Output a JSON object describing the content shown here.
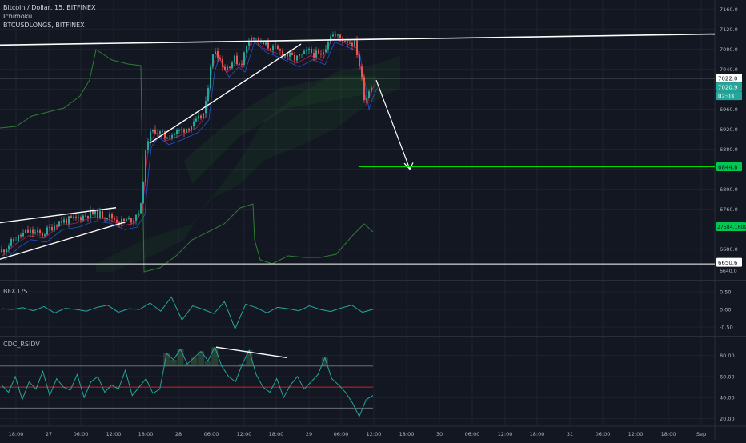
{
  "legend": {
    "title": "Bitcoin / Dollar, 15, BITFINEX",
    "indicator": "Ichimoku",
    "overlay": "BTCUSDLONGS, BITFINEX"
  },
  "pane_labels": {
    "ls": "BFX L/S",
    "rsi": "CDC_RSIDV"
  },
  "price_tags": {
    "t1": "7022.0",
    "t2": "7020.9",
    "t3": "02:03",
    "target": "6844.8",
    "longs": "27584.1609",
    "support": "6650.6",
    "support2": "6640.0"
  },
  "colors": {
    "background": "#131722",
    "grid": "#1f2331",
    "up": "#26a69a",
    "down": "#ef5350",
    "ichimoku_green": "#4caf50",
    "target_line": "#00e000",
    "osc": "#26a69a",
    "white_lines": "#ffffff"
  },
  "chart_data": [
    {
      "type": "candlestick",
      "title": "Bitcoin / Dollar, 15, BITFINEX",
      "ylim": [
        6630,
        7170
      ],
      "y_ticks": [
        7160,
        7120,
        7080,
        7040,
        7000,
        6960,
        6920,
        6880,
        6840,
        6800,
        6760,
        6720,
        6680
      ],
      "x_ticks": [
        "18:00",
        "27",
        "06:00",
        "12:00",
        "18:00",
        "28",
        "06:00",
        "12:00",
        "18:00",
        "29",
        "06:00",
        "12:00",
        "18:00",
        "30",
        "06:00",
        "12:00",
        "18:00",
        "31",
        "06:00",
        "12:00",
        "18:00",
        "Sep"
      ],
      "path_points": [
        [
          0,
          6675
        ],
        [
          18,
          6700
        ],
        [
          33,
          6715
        ],
        [
          52,
          6710
        ],
        [
          72,
          6735
        ],
        [
          92,
          6740
        ],
        [
          112,
          6752
        ],
        [
          132,
          6748
        ],
        [
          150,
          6735
        ],
        [
          165,
          6740
        ],
        [
          175,
          6765
        ],
        [
          179,
          6840
        ],
        [
          183,
          6900
        ],
        [
          192,
          6920
        ],
        [
          205,
          6905
        ],
        [
          222,
          6915
        ],
        [
          242,
          6930
        ],
        [
          255,
          6955
        ],
        [
          262,
          7050
        ],
        [
          268,
          7080
        ],
        [
          280,
          7040
        ],
        [
          292,
          7060
        ],
        [
          300,
          7050
        ],
        [
          312,
          7110
        ],
        [
          326,
          7090
        ],
        [
          342,
          7080
        ],
        [
          355,
          7070
        ],
        [
          368,
          7060
        ],
        [
          385,
          7075
        ],
        [
          400,
          7065
        ],
        [
          412,
          7110
        ],
        [
          428,
          7100
        ],
        [
          443,
          7090
        ],
        [
          450,
          7030
        ],
        [
          455,
          6975
        ],
        [
          460,
          7000
        ],
        [
          466,
          7020
        ]
      ],
      "horizontal_levels": [
        7022.0,
        6844.8,
        6650.6
      ],
      "price_tags": [
        7022.0,
        7020.9,
        6844.8,
        6650.6,
        6640.0
      ]
    },
    {
      "type": "line",
      "title": "BFX L/S",
      "ylim": [
        -0.7,
        0.7
      ],
      "y_ticks": [
        0.5,
        0.0,
        -0.5
      ],
      "values": [
        0.02,
        0.0,
        0.05,
        -0.04,
        0.08,
        -0.1,
        0.03,
        0.0,
        -0.05,
        0.06,
        0.12,
        -0.08,
        0.02,
        0.0,
        0.18,
        -0.05,
        0.35,
        -0.3,
        0.1,
        0.0,
        -0.12,
        0.22,
        -0.55,
        0.15,
        0.05,
        -0.1,
        0.06,
        0.02,
        -0.04,
        0.1,
        0.0,
        -0.06,
        0.04,
        0.12,
        -0.08,
        0.0
      ]
    },
    {
      "type": "line",
      "title": "CDC_RSIDV",
      "ylim": [
        15,
        95
      ],
      "y_ticks": [
        80,
        60,
        40,
        20
      ],
      "levels": [
        70,
        50,
        30
      ],
      "values": [
        52,
        45,
        60,
        38,
        55,
        48,
        65,
        42,
        58,
        50,
        47,
        62,
        40,
        55,
        60,
        45,
        52,
        48,
        66,
        42,
        50,
        58,
        44,
        48,
        82,
        76,
        86,
        72,
        78,
        84,
        75,
        88,
        70,
        60,
        55,
        72,
        85,
        62,
        50,
        45,
        58,
        40,
        52,
        60,
        48,
        55,
        62,
        78,
        58,
        52,
        45,
        35,
        22,
        38,
        42
      ]
    }
  ]
}
